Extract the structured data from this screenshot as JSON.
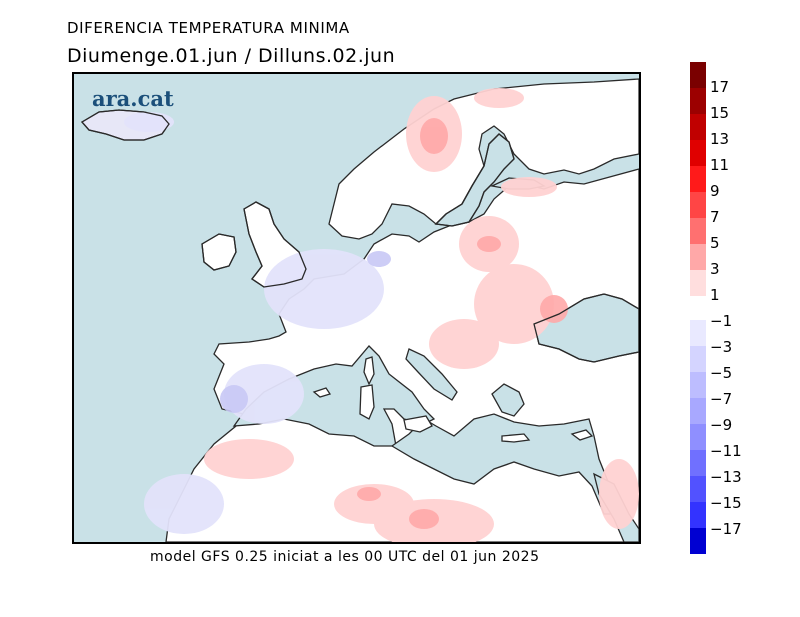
{
  "header": {
    "title": "DIFERENCIA TEMPERATURA MINIMA",
    "subtitle": "Diumenge.01.jun / Dilluns.02.jun"
  },
  "map": {
    "logo_text": "ara.cat",
    "sea_color": "#c9e1e7",
    "land_base_color": "#ffffff"
  },
  "colorbar": {
    "positive_labels": [
      "17",
      "15",
      "13",
      "11",
      "9",
      "7",
      "5",
      "3",
      "1"
    ],
    "negative_labels": [
      "-1",
      "-3",
      "-5",
      "-7",
      "-9",
      "-11",
      "-13",
      "-15",
      "-17"
    ],
    "positive_colors": [
      "#7a0000",
      "#9c0000",
      "#c00000",
      "#e00000",
      "#ff1a1a",
      "#ff4545",
      "#ff7070",
      "#ffa8a8",
      "#ffdede"
    ],
    "negative_colors": [
      "#e9e9ff",
      "#d4d4ff",
      "#bdbdff",
      "#a8a8ff",
      "#8f8fff",
      "#7070ff",
      "#5252ff",
      "#3333ff",
      "#0000d2"
    ]
  },
  "footer": {
    "text": "model GFS 0.25 iniciat a les 00 UTC del 01 jun 2025"
  }
}
